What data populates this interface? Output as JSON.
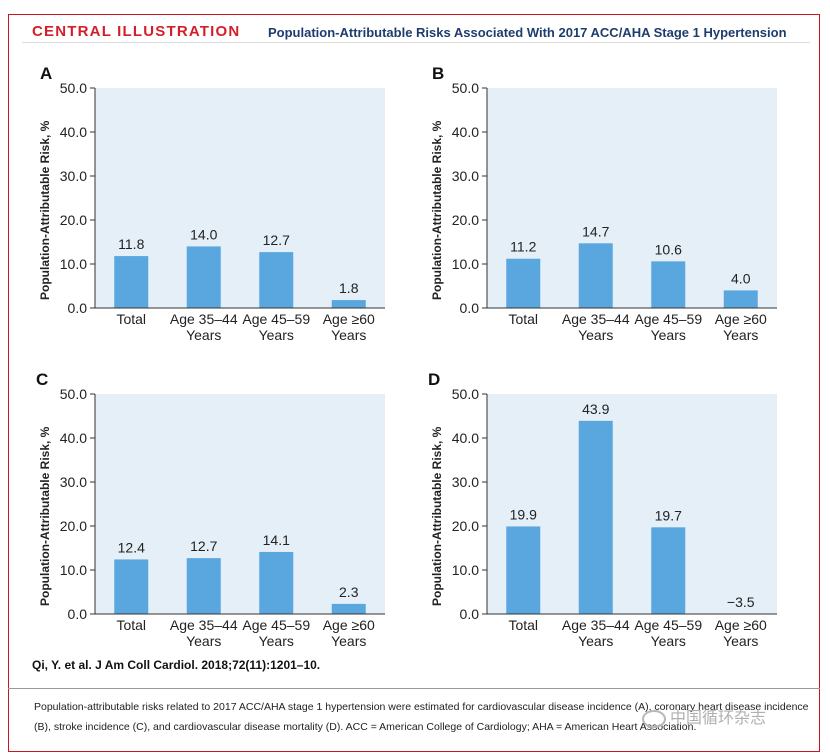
{
  "header": {
    "tag": "CENTRAL ILLUSTRATION",
    "title": "Population-Attributable Risks Associated With 2017 ACC/AHA Stage 1 Hypertension"
  },
  "colors": {
    "bar": "#5aa7df",
    "plot_bg": "#e4eff8",
    "tag": "#d41e2a",
    "title": "#1d3d6e"
  },
  "chart_data": [
    {
      "type": "bar",
      "panel": "A",
      "categories": [
        "Total",
        "Age 35–44\nYears",
        "Age 45–59\nYears",
        "Age ≥60\nYears"
      ],
      "values": [
        11.8,
        14.0,
        12.7,
        1.8
      ],
      "value_labels": [
        "11.8",
        "14.0",
        "12.7",
        "1.8"
      ],
      "ylabel": "Population-Attributable Risk, %",
      "ylim": [
        0,
        50
      ],
      "yticks": [
        "0.0",
        "10.0",
        "20.0",
        "30.0",
        "40.0",
        "50.0"
      ]
    },
    {
      "type": "bar",
      "panel": "B",
      "categories": [
        "Total",
        "Age 35–44\nYears",
        "Age 45–59\nYears",
        "Age ≥60\nYears"
      ],
      "values": [
        11.2,
        14.7,
        10.6,
        4.0
      ],
      "value_labels": [
        "11.2",
        "14.7",
        "10.6",
        "4.0"
      ],
      "ylabel": "Population-Attributable Risk, %",
      "ylim": [
        0,
        50
      ],
      "yticks": [
        "0.0",
        "10.0",
        "20.0",
        "30.0",
        "40.0",
        "50.0"
      ]
    },
    {
      "type": "bar",
      "panel": "C",
      "categories": [
        "Total",
        "Age 35–44\nYears",
        "Age 45–59\nYears",
        "Age ≥60\nYears"
      ],
      "values": [
        12.4,
        12.7,
        14.1,
        2.3
      ],
      "value_labels": [
        "12.4",
        "12.7",
        "14.1",
        "2.3"
      ],
      "ylabel": "Population-Attributable Risk, %",
      "ylim": [
        0,
        50
      ],
      "yticks": [
        "0.0",
        "10.0",
        "20.0",
        "30.0",
        "40.0",
        "50.0"
      ]
    },
    {
      "type": "bar",
      "panel": "D",
      "categories": [
        "Total",
        "Age 35–44\nYears",
        "Age 45–59\nYears",
        "Age ≥60\nYears"
      ],
      "values": [
        19.9,
        43.9,
        19.7,
        -3.5
      ],
      "value_labels": [
        "19.9",
        "43.9",
        "19.7",
        "−3.5"
      ],
      "ylabel": "Population-Attributable Risk, %",
      "ylim": [
        0,
        50
      ],
      "yticks": [
        "0.0",
        "10.0",
        "20.0",
        "30.0",
        "40.0",
        "50.0"
      ]
    }
  ],
  "citation": "Qi, Y. et al. J Am Coll Cardiol. 2018;72(11):1201–10.",
  "caption": {
    "line1": "Population-attributable risks related to 2017 ACC/AHA stage 1 hypertension were estimated for cardiovascular disease incidence (A), coronary heart disease incidence",
    "line2": "(B), stroke incidence (C), and cardiovascular disease mortality (D). ACC = American College of Cardiology; AHA = American Heart Association."
  },
  "watermark": "中国循环杂志"
}
